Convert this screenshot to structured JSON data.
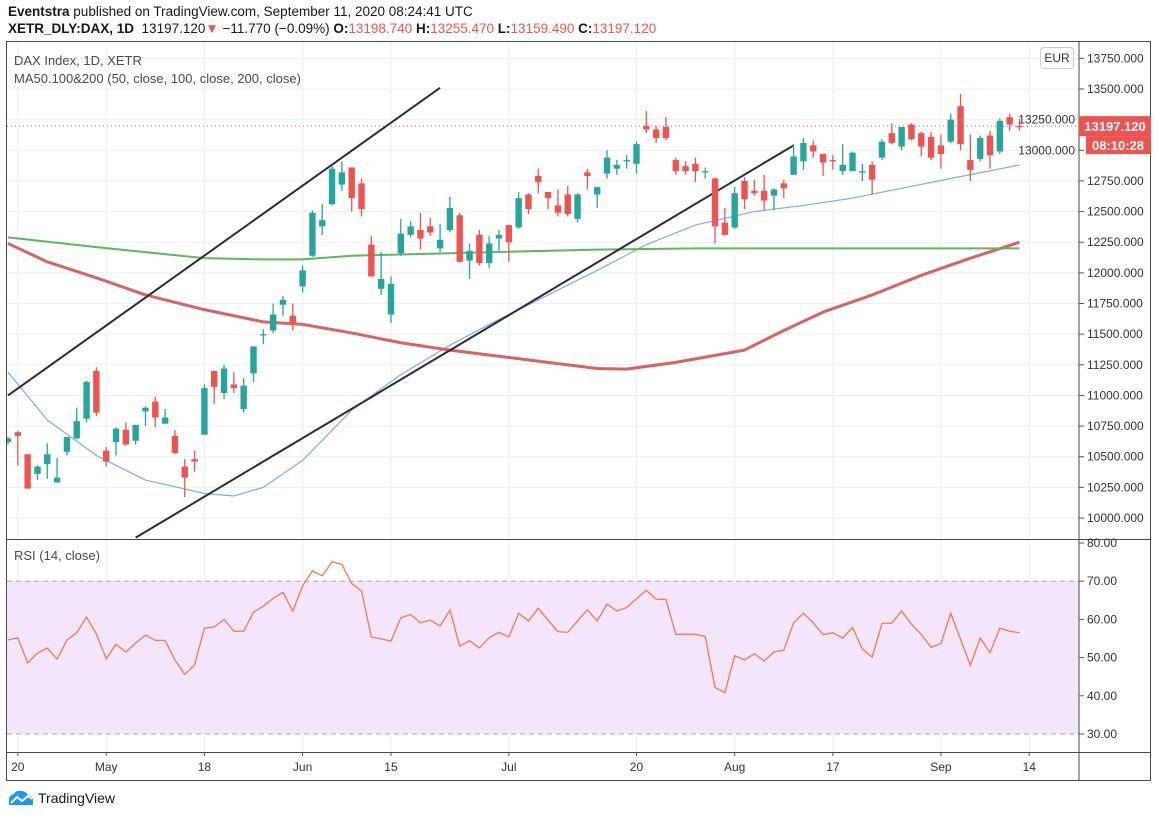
{
  "header": {
    "author": "Eventstra",
    "published": "published on TradingView.com, September 11, 2020 08:24:41 UTC",
    "symbol": "XETR_DLY:DAX, 1D",
    "last": "13197.120",
    "change": "−11.770 (−0.09%)",
    "o_label": "O:",
    "o": "13198.740",
    "h_label": "H:",
    "h": "13255.470",
    "l_label": "L:",
    "l": "13159.490",
    "c_label": "C:",
    "c": "13197.120"
  },
  "legend": {
    "title": "DAX Index, 1D, XETR",
    "ma": "MA50.100&200 (50, close, 100, close, 200, close)",
    "rsi": "RSI (14, close)"
  },
  "price_scale": {
    "currency": "EUR",
    "last_price_label": "13197.120",
    "countdown": "08:10:28"
  },
  "footer": {
    "logo_text": "TradingView"
  },
  "colors": {
    "up": "#26a69a",
    "down": "#ef5350",
    "ma50": "#7aafe6",
    "ma100": "#d96363",
    "ma200": "#5cb85c",
    "rsi": "#f57a45",
    "rsi_band": "#f3e5fc",
    "trendline": "#2a2e39",
    "brand": "#2196f3"
  },
  "chart_data": {
    "type": "candlestick",
    "grid": true,
    "price_axis": {
      "ylim": [
        9800,
        13850
      ],
      "ticks": [
        "13750.000",
        "13500.000",
        "13250.000",
        "13000.000",
        "12750.000",
        "12500.000",
        "12250.000",
        "12000.000",
        "11750.000",
        "11500.000",
        "11250.000",
        "11000.000",
        "10750.000",
        "10500.000",
        "10250.000",
        "10000.000"
      ]
    },
    "x_ticks": [
      {
        "date": "2020-04-20",
        "label": "20"
      },
      {
        "date": "2020-05-04",
        "label": "May"
      },
      {
        "date": "2020-05-18",
        "label": "18"
      },
      {
        "date": "2020-06-02",
        "label": "Jun"
      },
      {
        "date": "2020-06-15",
        "label": "15"
      },
      {
        "date": "2020-07-01",
        "label": "Jul"
      },
      {
        "date": "2020-07-20",
        "label": "20"
      },
      {
        "date": "2020-08-03",
        "label": "Aug"
      },
      {
        "date": "2020-08-17",
        "label": "17"
      },
      {
        "date": "2020-09-01",
        "label": "Sep"
      },
      {
        "date": "2020-09-14",
        "label": "14"
      }
    ],
    "last_price": 13197.12,
    "candles_fields": [
      "date",
      "open",
      "high",
      "low",
      "close"
    ],
    "candles": [
      [
        "2020-04-17",
        10620,
        10660,
        10600,
        10650
      ],
      [
        "2020-04-20",
        10700,
        10710,
        10430,
        10670
      ],
      [
        "2020-04-21",
        10520,
        10520,
        10240,
        10240
      ],
      [
        "2020-04-22",
        10360,
        10430,
        10310,
        10420
      ],
      [
        "2020-04-23",
        10440,
        10610,
        10320,
        10520
      ],
      [
        "2020-04-24",
        10290,
        10490,
        10290,
        10330
      ],
      [
        "2020-04-27",
        10540,
        10660,
        10510,
        10660
      ],
      [
        "2020-04-28",
        10650,
        10900,
        10640,
        10790
      ],
      [
        "2020-04-29",
        10810,
        11120,
        10780,
        11110
      ],
      [
        "2020-04-30",
        11200,
        11230,
        10830,
        10860
      ],
      [
        "2020-05-04",
        10550,
        10580,
        10420,
        10460
      ],
      [
        "2020-05-05",
        10620,
        10740,
        10510,
        10730
      ],
      [
        "2020-05-06",
        10720,
        10780,
        10590,
        10600
      ],
      [
        "2020-05-07",
        10630,
        10760,
        10600,
        10760
      ],
      [
        "2020-05-08",
        10870,
        10910,
        10750,
        10900
      ],
      [
        "2020-05-11",
        10950,
        10990,
        10740,
        10820
      ],
      [
        "2020-05-12",
        10770,
        10890,
        10770,
        10820
      ],
      [
        "2020-05-13",
        10670,
        10720,
        10520,
        10530
      ],
      [
        "2020-05-14",
        10420,
        10480,
        10170,
        10330
      ],
      [
        "2020-05-15",
        10480,
        10550,
        10380,
        10460
      ],
      [
        "2020-05-18",
        10680,
        11090,
        10680,
        11060
      ],
      [
        "2020-05-19",
        11200,
        11200,
        10930,
        11070
      ],
      [
        "2020-05-20",
        11020,
        11250,
        10970,
        11220
      ],
      [
        "2020-05-21",
        11090,
        11190,
        11020,
        11060
      ],
      [
        "2020-05-22",
        10890,
        11140,
        10860,
        11080
      ],
      [
        "2020-05-25",
        11180,
        11400,
        11110,
        11400
      ],
      [
        "2020-05-26",
        11490,
        11540,
        11420,
        11500
      ],
      [
        "2020-05-27",
        11530,
        11750,
        11510,
        11660
      ],
      [
        "2020-05-28",
        11740,
        11810,
        11650,
        11780
      ],
      [
        "2020-05-29",
        11650,
        11750,
        11530,
        11580
      ],
      [
        "2020-06-02",
        11890,
        12060,
        11840,
        12020
      ],
      [
        "2020-06-03",
        12140,
        12510,
        12130,
        12490
      ],
      [
        "2020-06-04",
        12380,
        12560,
        12310,
        12430
      ],
      [
        "2020-06-05",
        12560,
        12870,
        12550,
        12850
      ],
      [
        "2020-06-08",
        12720,
        12910,
        12670,
        12820
      ],
      [
        "2020-06-09",
        12860,
        12860,
        12500,
        12610
      ],
      [
        "2020-06-10",
        12730,
        12770,
        12460,
        12520
      ],
      [
        "2020-06-11",
        12230,
        12300,
        11970,
        11970
      ],
      [
        "2020-06-12",
        11870,
        12170,
        11820,
        11950
      ],
      [
        "2020-06-15",
        11660,
        11970,
        11590,
        11910
      ],
      [
        "2020-06-16",
        12160,
        12440,
        12140,
        12320
      ],
      [
        "2020-06-17",
        12310,
        12420,
        12290,
        12380
      ],
      [
        "2020-06-18",
        12350,
        12490,
        12190,
        12280
      ],
      [
        "2020-06-19",
        12380,
        12450,
        12300,
        12330
      ],
      [
        "2020-06-22",
        12200,
        12400,
        12170,
        12270
      ],
      [
        "2020-06-23",
        12350,
        12620,
        12330,
        12530
      ],
      [
        "2020-06-24",
        12470,
        12490,
        12090,
        12090
      ],
      [
        "2020-06-25",
        12100,
        12240,
        11950,
        12180
      ],
      [
        "2020-06-26",
        12310,
        12350,
        12060,
        12080
      ],
      [
        "2020-06-29",
        12080,
        12300,
        12040,
        12240
      ],
      [
        "2020-06-30",
        12280,
        12350,
        12180,
        12310
      ],
      [
        "2020-07-01",
        12390,
        12390,
        12090,
        12250
      ],
      [
        "2020-07-02",
        12370,
        12660,
        12360,
        12610
      ],
      [
        "2020-07-03",
        12640,
        12650,
        12480,
        12520
      ],
      [
        "2020-07-06",
        12790,
        12850,
        12650,
        12740
      ],
      [
        "2020-07-07",
        12660,
        12660,
        12520,
        12610
      ],
      [
        "2020-07-08",
        12550,
        12680,
        12460,
        12490
      ],
      [
        "2020-07-09",
        12640,
        12710,
        12460,
        12480
      ],
      [
        "2020-07-10",
        12440,
        12650,
        12410,
        12640
      ],
      [
        "2020-07-13",
        12820,
        12850,
        12680,
        12790
      ],
      [
        "2020-07-14",
        12640,
        12700,
        12530,
        12700
      ],
      [
        "2020-07-15",
        12810,
        13000,
        12770,
        12940
      ],
      [
        "2020-07-16",
        12850,
        12920,
        12800,
        12880
      ],
      [
        "2020-07-17",
        12910,
        12960,
        12850,
        12920
      ],
      [
        "2020-07-20",
        12890,
        13070,
        12810,
        13050
      ],
      [
        "2020-07-21",
        13200,
        13320,
        13140,
        13170
      ],
      [
        "2020-07-22",
        13170,
        13200,
        13060,
        13100
      ],
      [
        "2020-07-23",
        13190,
        13270,
        13080,
        13100
      ],
      [
        "2020-07-24",
        12920,
        12940,
        12800,
        12830
      ],
      [
        "2020-07-27",
        12870,
        12910,
        12800,
        12830
      ],
      [
        "2020-07-28",
        12890,
        12940,
        12740,
        12830
      ],
      [
        "2020-07-29",
        12820,
        12860,
        12770,
        12830
      ],
      [
        "2020-07-30",
        12770,
        12780,
        12240,
        12380
      ],
      [
        "2020-07-31",
        12410,
        12530,
        12310,
        12310
      ],
      [
        "2020-08-03",
        12370,
        12700,
        12360,
        12650
      ],
      [
        "2020-08-04",
        12750,
        12780,
        12520,
        12600
      ],
      [
        "2020-08-05",
        12670,
        12760,
        12630,
        12650
      ],
      [
        "2020-08-06",
        12670,
        12800,
        12510,
        12590
      ],
      [
        "2020-08-07",
        12630,
        12690,
        12510,
        12680
      ],
      [
        "2020-08-10",
        12730,
        12760,
        12610,
        12690
      ],
      [
        "2020-08-11",
        12800,
        13050,
        12800,
        12950
      ],
      [
        "2020-08-12",
        12910,
        13100,
        12840,
        13060
      ],
      [
        "2020-08-13",
        13040,
        13080,
        12940,
        12990
      ],
      [
        "2020-08-14",
        12970,
        12970,
        12790,
        12900
      ],
      [
        "2020-08-17",
        12920,
        12960,
        12840,
        12910
      ],
      [
        "2020-08-18",
        12830,
        13050,
        12800,
        12880
      ],
      [
        "2020-08-19",
        12830,
        12990,
        12830,
        12980
      ],
      [
        "2020-08-20",
        12820,
        12890,
        12750,
        12830
      ],
      [
        "2020-08-21",
        12880,
        12910,
        12640,
        12760
      ],
      [
        "2020-08-24",
        12940,
        13090,
        12920,
        13070
      ],
      [
        "2020-08-25",
        13140,
        13220,
        13050,
        13060
      ],
      [
        "2020-08-26",
        13030,
        13190,
        13000,
        13190
      ],
      [
        "2020-08-27",
        13210,
        13220,
        13080,
        13090
      ],
      [
        "2020-08-28",
        13140,
        13150,
        12950,
        13030
      ],
      [
        "2020-08-31",
        13110,
        13150,
        12920,
        12940
      ],
      [
        "2020-09-01",
        13040,
        13130,
        12850,
        12970
      ],
      [
        "2020-09-02",
        13070,
        13300,
        13060,
        13250
      ],
      [
        "2020-09-03",
        13360,
        13460,
        13000,
        13050
      ],
      [
        "2020-09-04",
        12920,
        13130,
        12750,
        12840
      ],
      [
        "2020-09-07",
        12930,
        13120,
        12910,
        13100
      ],
      [
        "2020-09-08",
        13120,
        13160,
        12850,
        12960
      ],
      [
        "2020-09-09",
        12990,
        13260,
        12970,
        13240
      ],
      [
        "2020-09-10",
        13270,
        13300,
        13160,
        13210
      ],
      [
        "2020-09-11",
        13198.74,
        13255.47,
        13159.49,
        13197.12
      ]
    ],
    "moving_averages": [
      {
        "name": "MA50",
        "points": [
          [
            "2020-04-17",
            11190
          ],
          [
            "2020-04-23",
            10800
          ],
          [
            "2020-04-30",
            10510
          ],
          [
            "2020-05-08",
            10310
          ],
          [
            "2020-05-18",
            10200
          ],
          [
            "2020-05-21",
            10180
          ],
          [
            "2020-05-26",
            10250
          ],
          [
            "2020-06-02",
            10470
          ],
          [
            "2020-06-09",
            10880
          ],
          [
            "2020-06-16",
            11170
          ],
          [
            "2020-06-23",
            11410
          ],
          [
            "2020-06-30",
            11620
          ],
          [
            "2020-07-07",
            11820
          ],
          [
            "2020-07-14",
            12020
          ],
          [
            "2020-07-21",
            12230
          ],
          [
            "2020-07-28",
            12390
          ],
          [
            "2020-08-05",
            12500
          ],
          [
            "2020-08-12",
            12550
          ],
          [
            "2020-08-19",
            12610
          ],
          [
            "2020-08-26",
            12690
          ],
          [
            "2020-09-02",
            12770
          ],
          [
            "2020-09-11",
            12880
          ]
        ]
      },
      {
        "name": "MA100",
        "points": [
          [
            "2020-04-17",
            12240
          ],
          [
            "2020-04-23",
            12090
          ],
          [
            "2020-04-30",
            11960
          ],
          [
            "2020-05-08",
            11820
          ],
          [
            "2020-05-18",
            11700
          ],
          [
            "2020-05-26",
            11600
          ],
          [
            "2020-06-02",
            11580
          ],
          [
            "2020-06-09",
            11510
          ],
          [
            "2020-06-16",
            11430
          ],
          [
            "2020-06-23",
            11370
          ],
          [
            "2020-06-30",
            11320
          ],
          [
            "2020-07-07",
            11270
          ],
          [
            "2020-07-14",
            11220
          ],
          [
            "2020-07-17",
            11215
          ],
          [
            "2020-07-24",
            11270
          ],
          [
            "2020-08-04",
            11370
          ],
          [
            "2020-08-10",
            11530
          ],
          [
            "2020-08-14",
            11680
          ],
          [
            "2020-08-21",
            11820
          ],
          [
            "2020-08-28",
            11980
          ],
          [
            "2020-09-04",
            12120
          ],
          [
            "2020-09-11",
            12250
          ]
        ]
      },
      {
        "name": "MA200",
        "points": [
          [
            "2020-04-17",
            12290
          ],
          [
            "2020-04-30",
            12210
          ],
          [
            "2020-05-18",
            12120
          ],
          [
            "2020-05-26",
            12110
          ],
          [
            "2020-06-02",
            12110
          ],
          [
            "2020-06-09",
            12140
          ],
          [
            "2020-06-16",
            12150
          ],
          [
            "2020-06-30",
            12170
          ],
          [
            "2020-07-14",
            12190
          ],
          [
            "2020-07-28",
            12200
          ],
          [
            "2020-08-12",
            12200
          ],
          [
            "2020-08-26",
            12200
          ],
          [
            "2020-09-11",
            12200
          ]
        ]
      }
    ],
    "trendlines": [
      {
        "start": [
          "2020-04-17",
          11000
        ],
        "end": [
          "2020-06-22",
          13510
        ]
      },
      {
        "start": [
          "2020-05-07",
          9840
        ],
        "end": [
          "2020-08-11",
          13040
        ]
      }
    ],
    "rsi": {
      "period": 14,
      "ylim": [
        27,
        82
      ],
      "ticks": [
        "80.00",
        "70.00",
        "60.00",
        "50.00",
        "40.00",
        "30.00"
      ],
      "band": [
        30,
        70
      ],
      "values": [
        54.6,
        55.2,
        48.6,
        51.2,
        52.5,
        49.6,
        54.6,
        56.5,
        60.6,
        56.2,
        49.7,
        53.5,
        51.5,
        53.8,
        55.9,
        54.5,
        54.5,
        49.4,
        45.6,
        48.1,
        57.7,
        58.0,
        60.0,
        56.9,
        56.9,
        61.9,
        63.5,
        65.5,
        67.1,
        62.2,
        68.8,
        72.7,
        71.4,
        75.1,
        74.4,
        69.4,
        67.4,
        55.4,
        54.9,
        54.3,
        60.4,
        61.3,
        59.1,
        59.8,
        58.3,
        62.4,
        53.0,
        54.4,
        52.5,
        55.2,
        56.6,
        55.4,
        61.6,
        59.6,
        62.9,
        59.8,
        56.8,
        56.6,
        59.6,
        62.5,
        59.6,
        64.0,
        62.2,
        63.1,
        65.4,
        67.6,
        65.3,
        65.2,
        56.1,
        56.1,
        56.1,
        55.5,
        42.2,
        40.8,
        50.5,
        49.4,
        51.0,
        49.1,
        51.5,
        51.9,
        59.1,
        61.6,
        59.1,
        56.0,
        56.5,
        55.1,
        57.9,
        52.3,
        50.1,
        59.0,
        59.0,
        62.2,
        58.7,
        56.1,
        52.7,
        53.7,
        61.6,
        54.8,
        48.0,
        55.1,
        51.3,
        57.7,
        56.9,
        56.5
      ]
    }
  }
}
